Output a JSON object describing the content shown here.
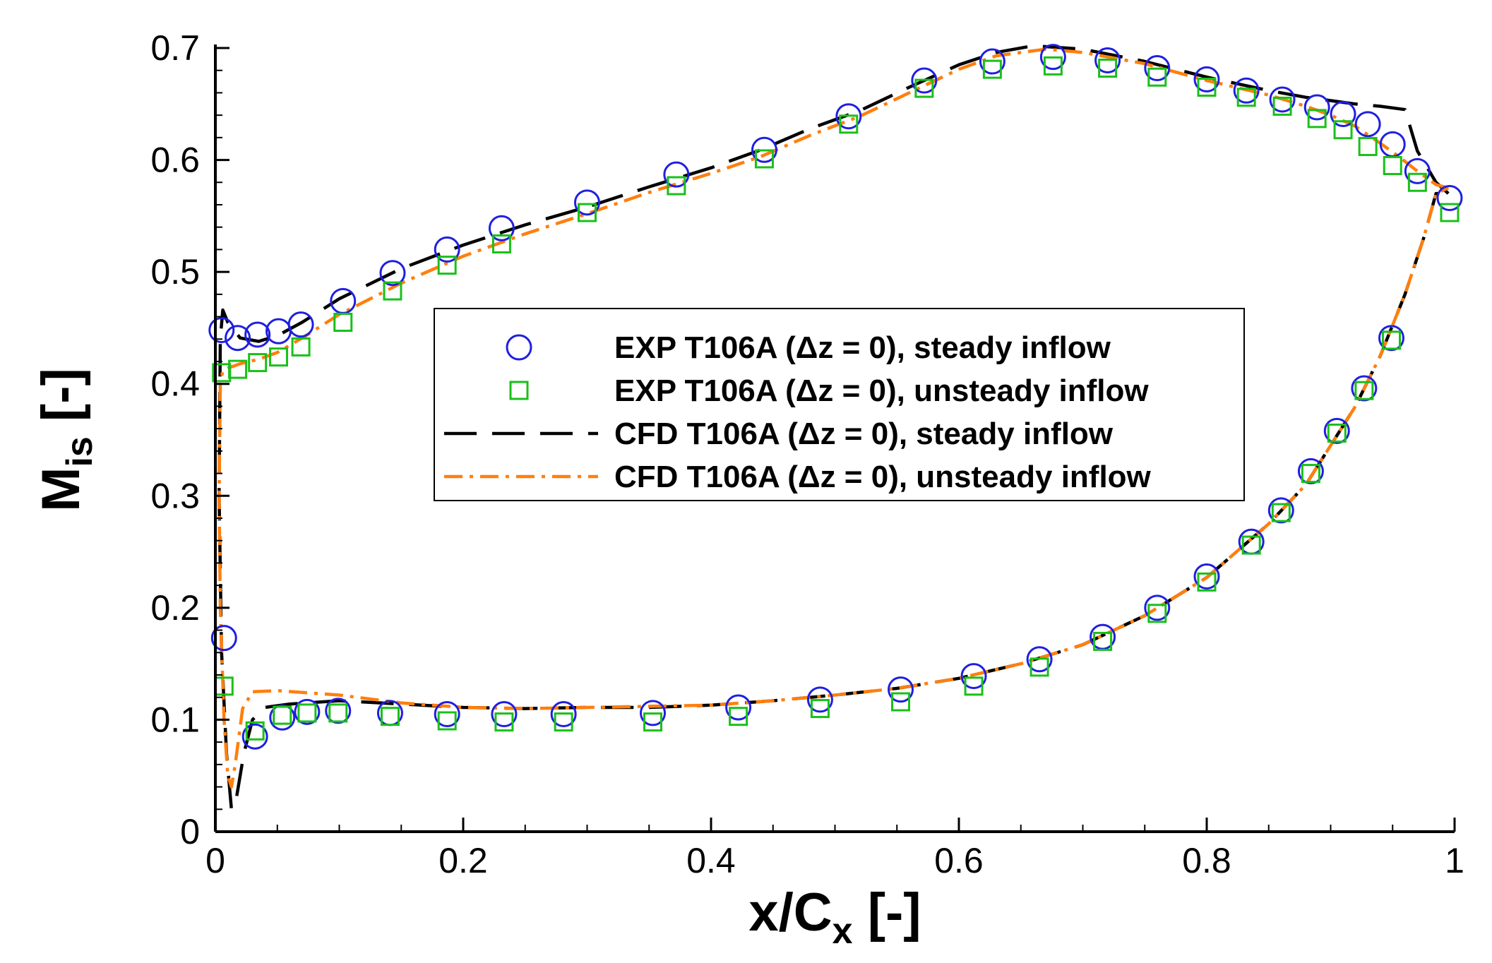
{
  "chart_data": {
    "type": "scatter",
    "title": "",
    "xlabel": {
      "main": "x/C",
      "sub": "x",
      "suffix": " [-]"
    },
    "ylabel": {
      "main": "M",
      "sub": "is",
      "suffix": " [-]"
    },
    "xlim": [
      0,
      1
    ],
    "ylim": [
      0,
      0.7
    ],
    "xticks": [
      0,
      0.2,
      0.4,
      0.6,
      0.8,
      1
    ],
    "xtick_labels": [
      "0",
      "0.2",
      "0.4",
      "0.6",
      "0.8",
      "1"
    ],
    "yticks": [
      0,
      0.1,
      0.2,
      0.3,
      0.4,
      0.5,
      0.6,
      0.7
    ],
    "ytick_labels": [
      "0",
      "0.1",
      "0.2",
      "0.3",
      "0.4",
      "0.5",
      "0.6",
      "0.7"
    ],
    "grid": false,
    "legend_position": "center",
    "series": [
      {
        "name": "EXP T106A (Δz = 0), steady inflow",
        "kind": "marker",
        "marker": "circle",
        "color": "#1f1fe0",
        "points": [
          [
            0.005,
            0.448
          ],
          [
            0.018,
            0.441
          ],
          [
            0.034,
            0.444
          ],
          [
            0.051,
            0.447
          ],
          [
            0.069,
            0.453
          ],
          [
            0.103,
            0.474
          ],
          [
            0.143,
            0.499
          ],
          [
            0.187,
            0.52
          ],
          [
            0.231,
            0.539
          ],
          [
            0.3,
            0.562
          ],
          [
            0.372,
            0.587
          ],
          [
            0.443,
            0.609
          ],
          [
            0.511,
            0.639
          ],
          [
            0.572,
            0.671
          ],
          [
            0.627,
            0.688
          ],
          [
            0.676,
            0.692
          ],
          [
            0.72,
            0.689
          ],
          [
            0.76,
            0.682
          ],
          [
            0.8,
            0.672
          ],
          [
            0.832,
            0.662
          ],
          [
            0.861,
            0.654
          ],
          [
            0.889,
            0.647
          ],
          [
            0.91,
            0.641
          ],
          [
            0.93,
            0.632
          ],
          [
            0.95,
            0.614
          ],
          [
            0.97,
            0.59
          ],
          [
            0.996,
            0.566
          ],
          [
            0.007,
            0.173
          ],
          [
            0.032,
            0.085
          ],
          [
            0.054,
            0.102
          ],
          [
            0.074,
            0.107
          ],
          [
            0.099,
            0.108
          ],
          [
            0.141,
            0.106
          ],
          [
            0.187,
            0.105
          ],
          [
            0.233,
            0.105
          ],
          [
            0.281,
            0.105
          ],
          [
            0.353,
            0.106
          ],
          [
            0.422,
            0.111
          ],
          [
            0.488,
            0.118
          ],
          [
            0.553,
            0.127
          ],
          [
            0.612,
            0.139
          ],
          [
            0.665,
            0.154
          ],
          [
            0.716,
            0.174
          ],
          [
            0.76,
            0.2
          ],
          [
            0.8,
            0.228
          ],
          [
            0.836,
            0.259
          ],
          [
            0.86,
            0.287
          ],
          [
            0.884,
            0.322
          ],
          [
            0.905,
            0.358
          ],
          [
            0.927,
            0.396
          ],
          [
            0.949,
            0.441
          ]
        ]
      },
      {
        "name": "EXP T106A (Δz = 0), unsteady inflow",
        "kind": "marker",
        "marker": "square",
        "color": "#19c019",
        "points": [
          [
            0.005,
            0.41
          ],
          [
            0.018,
            0.413
          ],
          [
            0.034,
            0.419
          ],
          [
            0.051,
            0.424
          ],
          [
            0.069,
            0.433
          ],
          [
            0.103,
            0.455
          ],
          [
            0.143,
            0.483
          ],
          [
            0.187,
            0.506
          ],
          [
            0.231,
            0.525
          ],
          [
            0.3,
            0.553
          ],
          [
            0.372,
            0.577
          ],
          [
            0.443,
            0.601
          ],
          [
            0.511,
            0.632
          ],
          [
            0.572,
            0.664
          ],
          [
            0.627,
            0.681
          ],
          [
            0.676,
            0.684
          ],
          [
            0.72,
            0.682
          ],
          [
            0.76,
            0.674
          ],
          [
            0.8,
            0.665
          ],
          [
            0.832,
            0.656
          ],
          [
            0.861,
            0.648
          ],
          [
            0.889,
            0.637
          ],
          [
            0.91,
            0.627
          ],
          [
            0.93,
            0.612
          ],
          [
            0.95,
            0.595
          ],
          [
            0.97,
            0.58
          ],
          [
            0.996,
            0.553
          ],
          [
            0.007,
            0.13
          ],
          [
            0.032,
            0.09
          ],
          [
            0.054,
            0.104
          ],
          [
            0.074,
            0.106
          ],
          [
            0.099,
            0.106
          ],
          [
            0.141,
            0.103
          ],
          [
            0.187,
            0.099
          ],
          [
            0.233,
            0.098
          ],
          [
            0.281,
            0.098
          ],
          [
            0.353,
            0.098
          ],
          [
            0.422,
            0.103
          ],
          [
            0.488,
            0.11
          ],
          [
            0.553,
            0.116
          ],
          [
            0.612,
            0.13
          ],
          [
            0.665,
            0.147
          ],
          [
            0.716,
            0.17
          ],
          [
            0.76,
            0.195
          ],
          [
            0.8,
            0.223
          ],
          [
            0.836,
            0.256
          ],
          [
            0.86,
            0.285
          ],
          [
            0.884,
            0.32
          ],
          [
            0.905,
            0.356
          ],
          [
            0.927,
            0.394
          ],
          [
            0.949,
            0.439
          ]
        ]
      },
      {
        "name": "CFD T106A (Δz = 0), steady inflow",
        "kind": "line",
        "dash": "long-dash",
        "color": "#000000",
        "points": [
          [
            0.995,
            0.57
          ],
          [
            0.985,
            0.58
          ],
          [
            0.97,
            0.608
          ],
          [
            0.96,
            0.645
          ],
          [
            0.94,
            0.648
          ],
          [
            0.92,
            0.65
          ],
          [
            0.9,
            0.653
          ],
          [
            0.88,
            0.656
          ],
          [
            0.85,
            0.662
          ],
          [
            0.8,
            0.674
          ],
          [
            0.75,
            0.688
          ],
          [
            0.7,
            0.699
          ],
          [
            0.66,
            0.702
          ],
          [
            0.63,
            0.696
          ],
          [
            0.6,
            0.685
          ],
          [
            0.56,
            0.665
          ],
          [
            0.52,
            0.644
          ],
          [
            0.48,
            0.628
          ],
          [
            0.44,
            0.609
          ],
          [
            0.4,
            0.593
          ],
          [
            0.35,
            0.576
          ],
          [
            0.3,
            0.558
          ],
          [
            0.25,
            0.542
          ],
          [
            0.2,
            0.524
          ],
          [
            0.15,
            0.503
          ],
          [
            0.1,
            0.476
          ],
          [
            0.07,
            0.455
          ],
          [
            0.05,
            0.443
          ],
          [
            0.035,
            0.438
          ],
          [
            0.02,
            0.441
          ],
          [
            0.01,
            0.455
          ],
          [
            0.006,
            0.466
          ],
          [
            0.004,
            0.44
          ],
          [
            0.003,
            0.3
          ],
          [
            0.005,
            0.16
          ],
          [
            0.009,
            0.07
          ],
          [
            0.013,
            0.02
          ],
          [
            0.017,
            0.03
          ],
          [
            0.023,
            0.07
          ],
          [
            0.03,
            0.1
          ],
          [
            0.04,
            0.111
          ],
          [
            0.06,
            0.114
          ],
          [
            0.1,
            0.117
          ],
          [
            0.15,
            0.114
          ],
          [
            0.2,
            0.111
          ],
          [
            0.25,
            0.11
          ],
          [
            0.3,
            0.111
          ],
          [
            0.35,
            0.111
          ],
          [
            0.4,
            0.113
          ],
          [
            0.45,
            0.117
          ],
          [
            0.5,
            0.122
          ],
          [
            0.55,
            0.128
          ],
          [
            0.6,
            0.137
          ],
          [
            0.65,
            0.15
          ],
          [
            0.7,
            0.167
          ],
          [
            0.75,
            0.193
          ],
          [
            0.8,
            0.227
          ],
          [
            0.85,
            0.275
          ],
          [
            0.88,
            0.31
          ],
          [
            0.9,
            0.345
          ],
          [
            0.92,
            0.38
          ],
          [
            0.94,
            0.425
          ],
          [
            0.96,
            0.48
          ],
          [
            0.975,
            0.53
          ],
          [
            0.985,
            0.57
          ],
          [
            0.995,
            0.57
          ]
        ]
      },
      {
        "name": "CFD T106A (Δz = 0), unsteady inflow",
        "kind": "line",
        "dash": "dash-dot",
        "color": "#ff7f0e",
        "points": [
          [
            0.995,
            0.575
          ],
          [
            0.985,
            0.578
          ],
          [
            0.97,
            0.59
          ],
          [
            0.955,
            0.603
          ],
          [
            0.94,
            0.615
          ],
          [
            0.92,
            0.63
          ],
          [
            0.9,
            0.64
          ],
          [
            0.88,
            0.648
          ],
          [
            0.85,
            0.658
          ],
          [
            0.8,
            0.671
          ],
          [
            0.75,
            0.686
          ],
          [
            0.7,
            0.696
          ],
          [
            0.67,
            0.699
          ],
          [
            0.63,
            0.693
          ],
          [
            0.6,
            0.681
          ],
          [
            0.56,
            0.66
          ],
          [
            0.52,
            0.639
          ],
          [
            0.48,
            0.622
          ],
          [
            0.44,
            0.603
          ],
          [
            0.4,
            0.588
          ],
          [
            0.35,
            0.571
          ],
          [
            0.3,
            0.552
          ],
          [
            0.25,
            0.534
          ],
          [
            0.2,
            0.514
          ],
          [
            0.15,
            0.49
          ],
          [
            0.1,
            0.462
          ],
          [
            0.07,
            0.441
          ],
          [
            0.05,
            0.428
          ],
          [
            0.035,
            0.422
          ],
          [
            0.02,
            0.418
          ],
          [
            0.01,
            0.414
          ],
          [
            0.006,
            0.412
          ],
          [
            0.004,
            0.4
          ],
          [
            0.003,
            0.3
          ],
          [
            0.004,
            0.2
          ],
          [
            0.007,
            0.1
          ],
          [
            0.01,
            0.05
          ],
          [
            0.013,
            0.04
          ],
          [
            0.016,
            0.06
          ],
          [
            0.022,
            0.11
          ],
          [
            0.03,
            0.125
          ],
          [
            0.05,
            0.126
          ],
          [
            0.1,
            0.122
          ],
          [
            0.15,
            0.115
          ],
          [
            0.2,
            0.111
          ],
          [
            0.25,
            0.11
          ],
          [
            0.3,
            0.111
          ],
          [
            0.35,
            0.112
          ],
          [
            0.4,
            0.113
          ],
          [
            0.45,
            0.117
          ],
          [
            0.5,
            0.122
          ],
          [
            0.55,
            0.128
          ],
          [
            0.6,
            0.137
          ],
          [
            0.65,
            0.15
          ],
          [
            0.7,
            0.167
          ],
          [
            0.75,
            0.193
          ],
          [
            0.8,
            0.227
          ],
          [
            0.85,
            0.275
          ],
          [
            0.88,
            0.31
          ],
          [
            0.9,
            0.345
          ],
          [
            0.92,
            0.38
          ],
          [
            0.94,
            0.425
          ],
          [
            0.96,
            0.48
          ],
          [
            0.975,
            0.53
          ],
          [
            0.985,
            0.57
          ],
          [
            0.995,
            0.575
          ]
        ]
      }
    ]
  }
}
